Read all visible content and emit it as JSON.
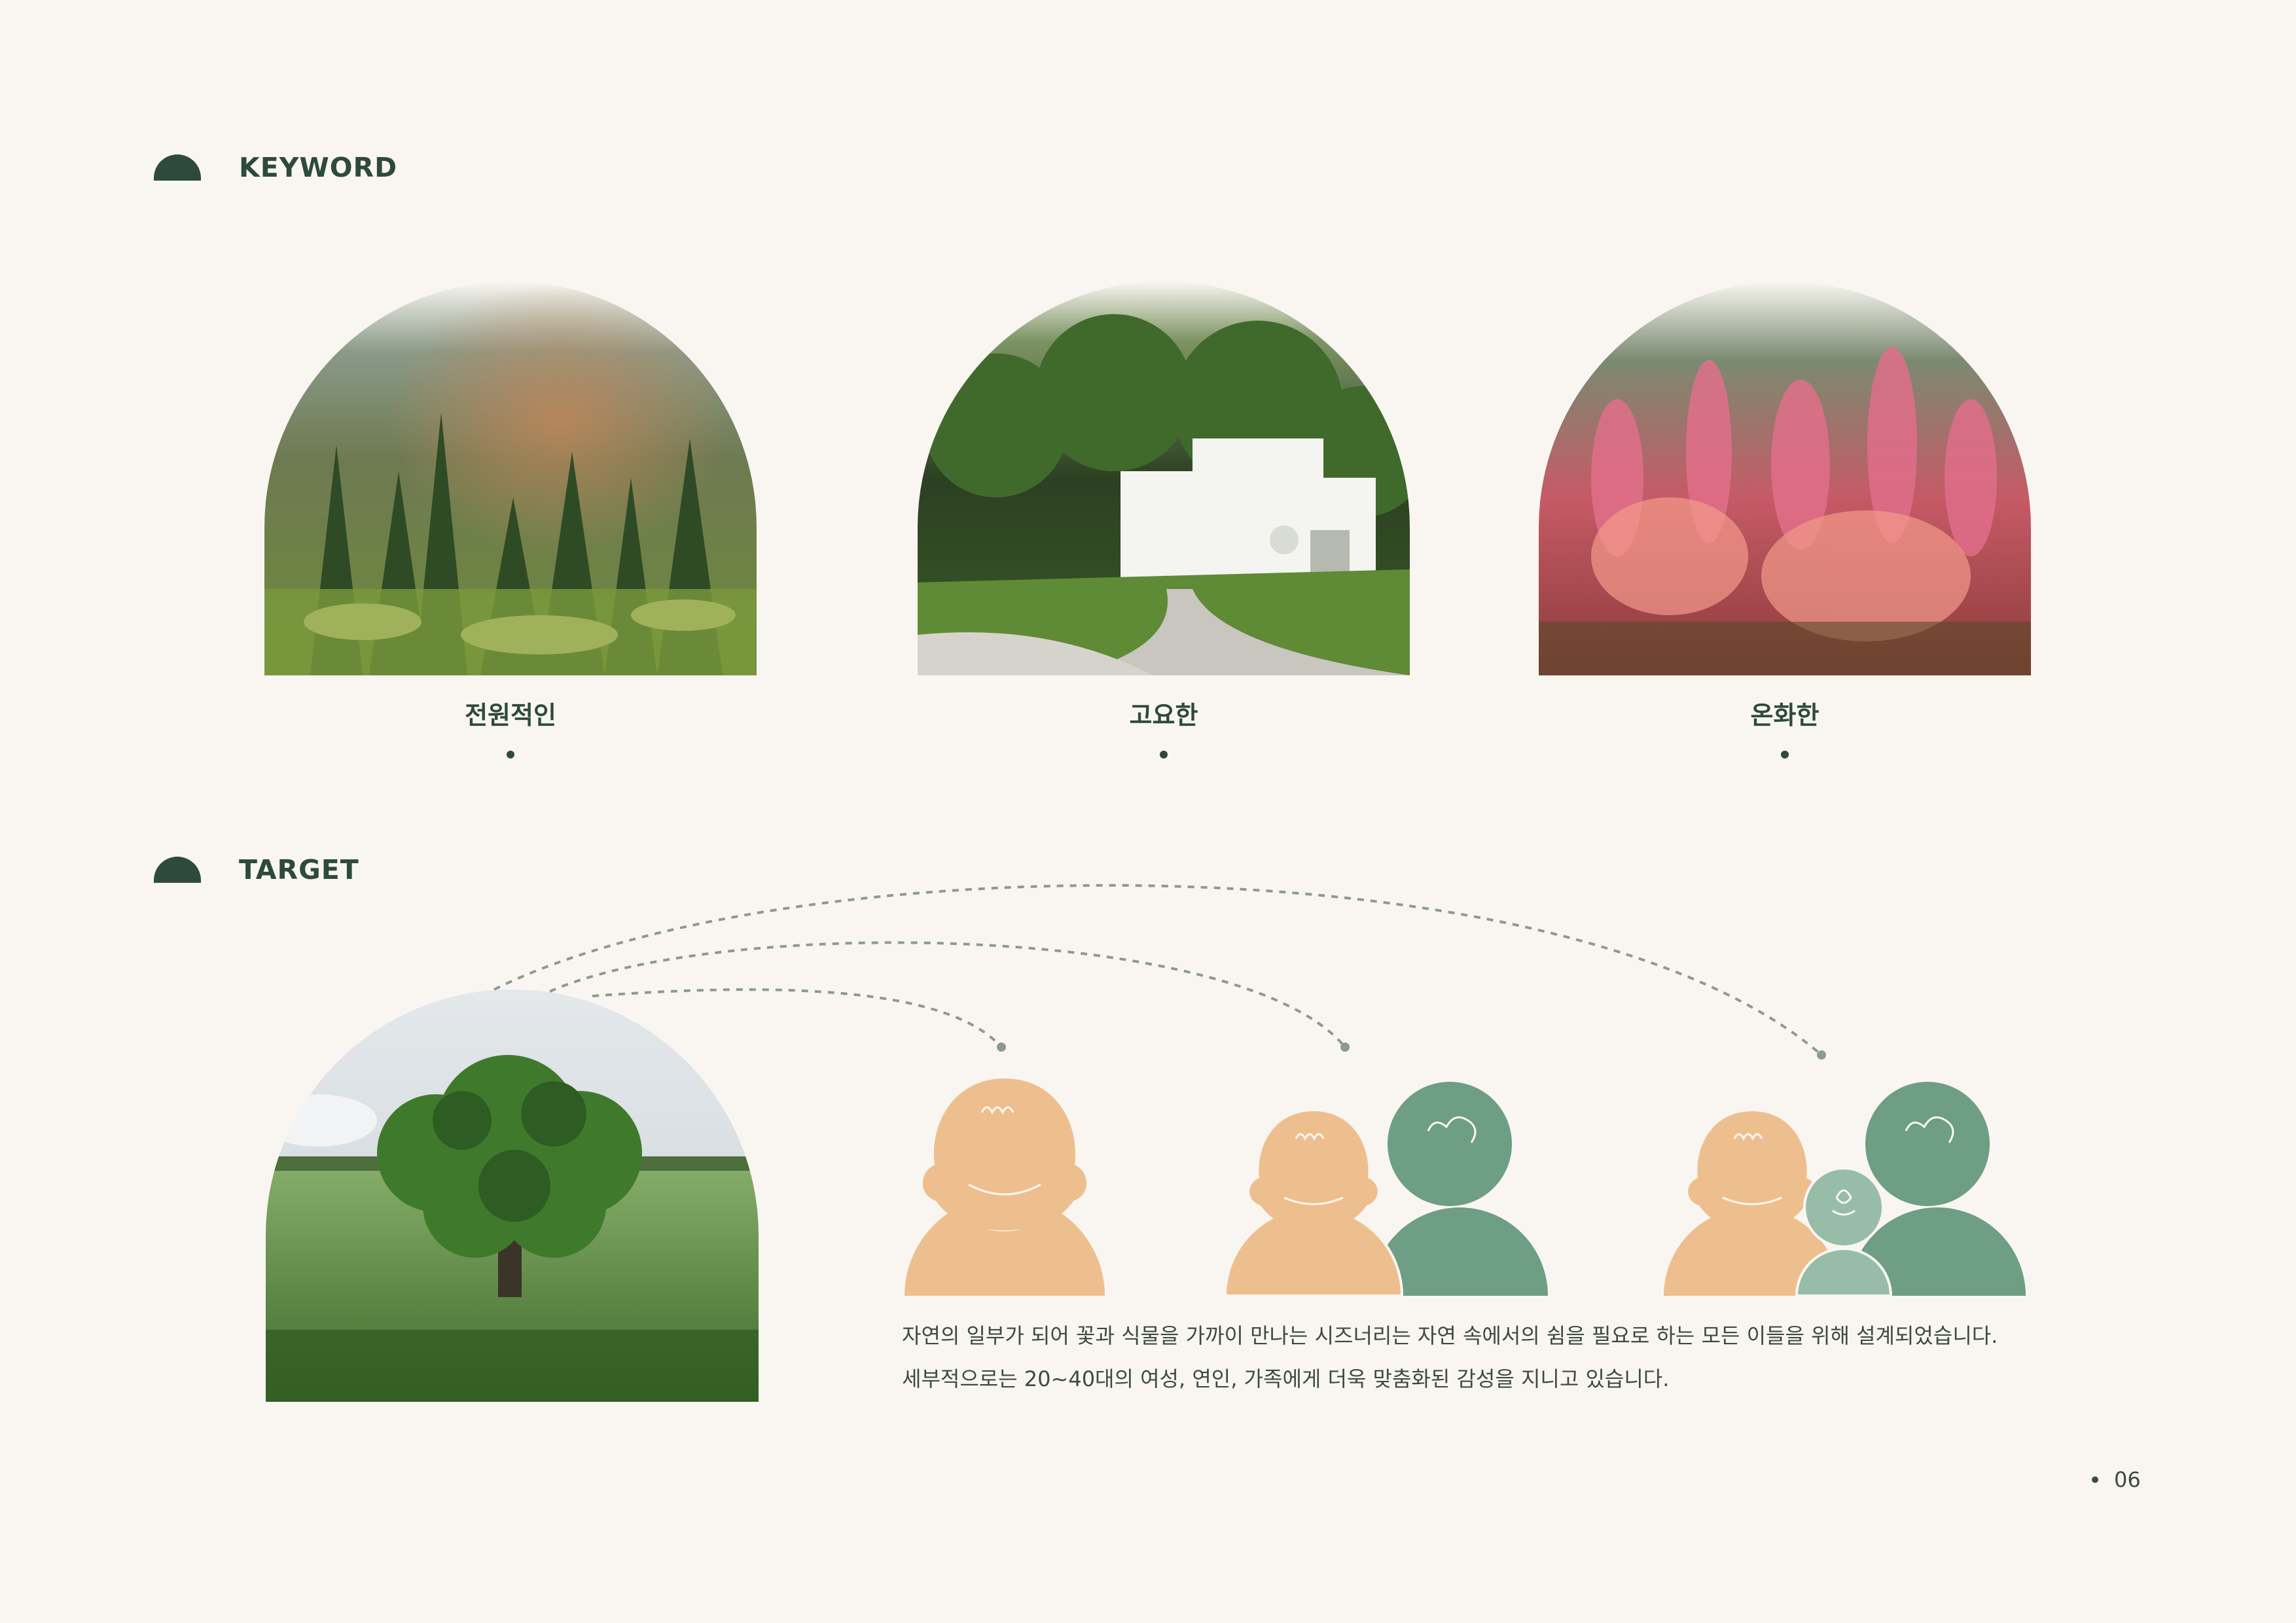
{
  "keyword_section": {
    "title": "KEYWORD",
    "items": [
      {
        "label": "전원적인",
        "image": "misty-pine-forest"
      },
      {
        "label": "고요한",
        "image": "white-house-in-forest"
      },
      {
        "label": "온화한",
        "image": "pink-wildflowers"
      }
    ]
  },
  "target_section": {
    "title": "TARGET",
    "image": "single-oak-tree-in-field",
    "groups": [
      "single-woman",
      "couple",
      "family-with-child"
    ],
    "description": [
      "자연의 일부가 되어 꽃과 식물을 가까이 만나는 시즈너리는 자연 속에서의 쉼을 필요로 하는 모든 이들을 위해 설계되었습니다.",
      "세부적으로는 20~40대의 여성, 연인, 가족에게 더욱 맞춤화된 감성을 지니고 있습니다."
    ]
  },
  "page_number": "06",
  "colors": {
    "background": "#f9f6f1",
    "dark_green": "#2e4a3c",
    "peach": "#eebf8e",
    "green": "#6e9e84",
    "light_green": "#97bda9",
    "dash": "#8c9a92"
  }
}
